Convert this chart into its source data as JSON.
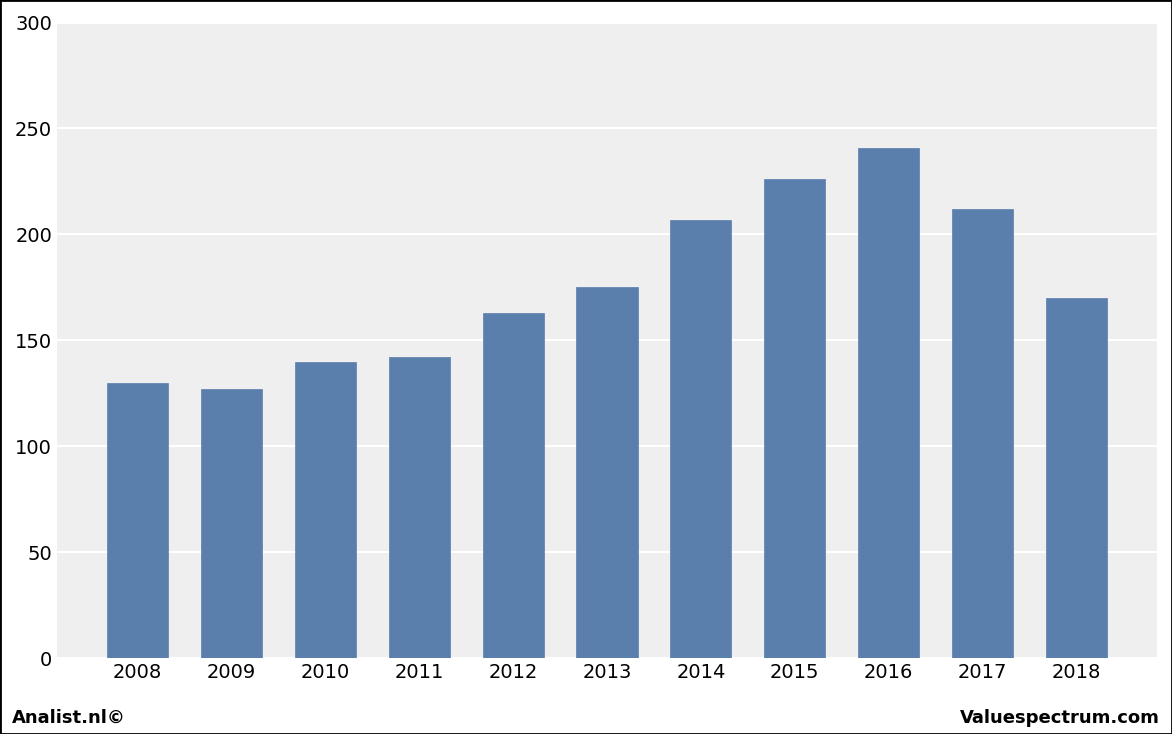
{
  "years": [
    "2008",
    "2009",
    "2010",
    "2011",
    "2012",
    "2013",
    "2014",
    "2015",
    "2016",
    "2017",
    "2018"
  ],
  "values": [
    130,
    127,
    140,
    142,
    163,
    175,
    207,
    226,
    241,
    212,
    170
  ],
  "bar_color": "#5b7fad",
  "bar_edge_color": "#5b7fad",
  "ylim": [
    0,
    300
  ],
  "yticks": [
    0,
    50,
    100,
    150,
    200,
    250,
    300
  ],
  "background_color": "#ffffff",
  "plot_bg_color": "#efefef",
  "grid_color": "#ffffff",
  "footer_left": "Analist.nl©",
  "footer_right": "Valuespectrum.com",
  "footer_fontsize": 13,
  "tick_fontsize": 14,
  "bar_width": 0.65
}
